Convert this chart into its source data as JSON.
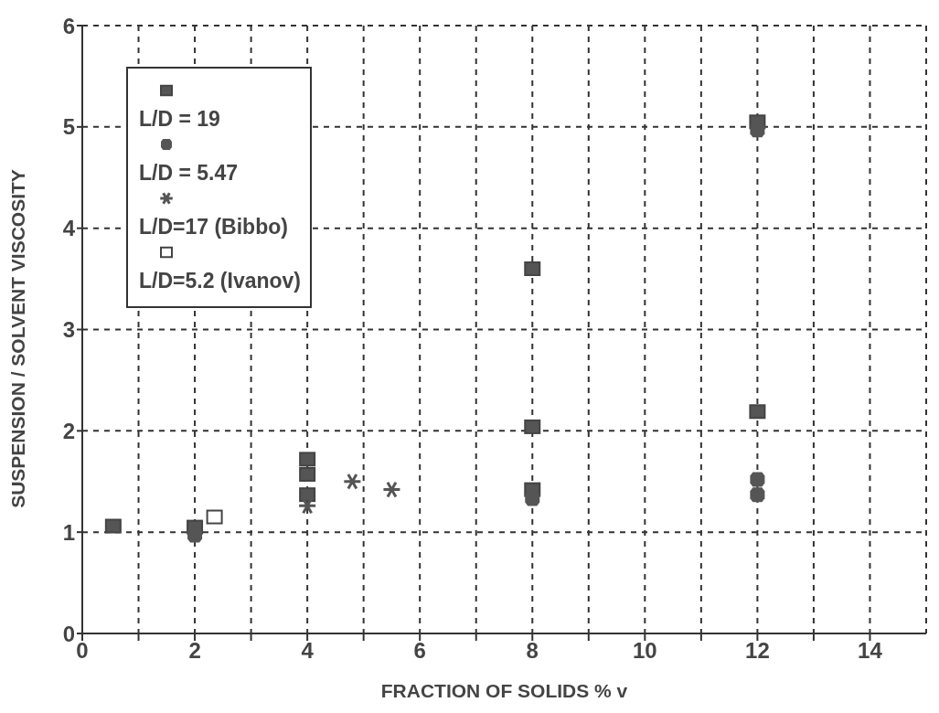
{
  "chart_data": {
    "type": "scatter",
    "xlabel": "FRACTION OF SOLIDS % v",
    "ylabel": "SUSPENSION / SOLVENT VISCOSITY",
    "xlim": [
      0,
      15
    ],
    "xticks": [
      0,
      {
        "value": 1,
        "label": null
      },
      2,
      {
        "value": 3,
        "label": null
      },
      4,
      {
        "value": 5,
        "label": null
      },
      6,
      {
        "value": 7,
        "label": null
      },
      8,
      {
        "value": 9,
        "label": null
      },
      10,
      {
        "value": 11,
        "label": null
      },
      12,
      {
        "value": 13,
        "label": null
      },
      14
    ],
    "ylim": [
      0,
      6
    ],
    "yticks": [
      0,
      1,
      2,
      3,
      4,
      5,
      6
    ],
    "grid": true,
    "legend": "top left",
    "series": [
      {
        "name": "L/D = 19",
        "color": "#555555",
        "marker": "square",
        "x": [
          0.55,
          2,
          4,
          4,
          4,
          8,
          8,
          8,
          12,
          12
        ],
        "values": [
          1.06,
          1.05,
          1.72,
          1.57,
          1.37,
          3.6,
          2.04,
          1.42,
          5.05,
          2.19
        ]
      },
      {
        "name": "L/D = 5.47",
        "color": "#555555",
        "marker": "circle",
        "x": [
          2,
          8,
          12,
          12,
          12
        ],
        "values": [
          0.97,
          1.33,
          1.52,
          1.37,
          4.97
        ]
      },
      {
        "name": "L/D=17 (Bibbo)",
        "color": "#555555",
        "marker": "cross",
        "x": [
          4,
          4.8,
          5.5
        ],
        "values": [
          1.26,
          1.5,
          1.42
        ]
      },
      {
        "name": "L/D=5.2 (Ivanov)",
        "color": "#ffffff",
        "marker": "square",
        "x": [
          2.35
        ],
        "values": [
          1.15
        ]
      }
    ]
  }
}
